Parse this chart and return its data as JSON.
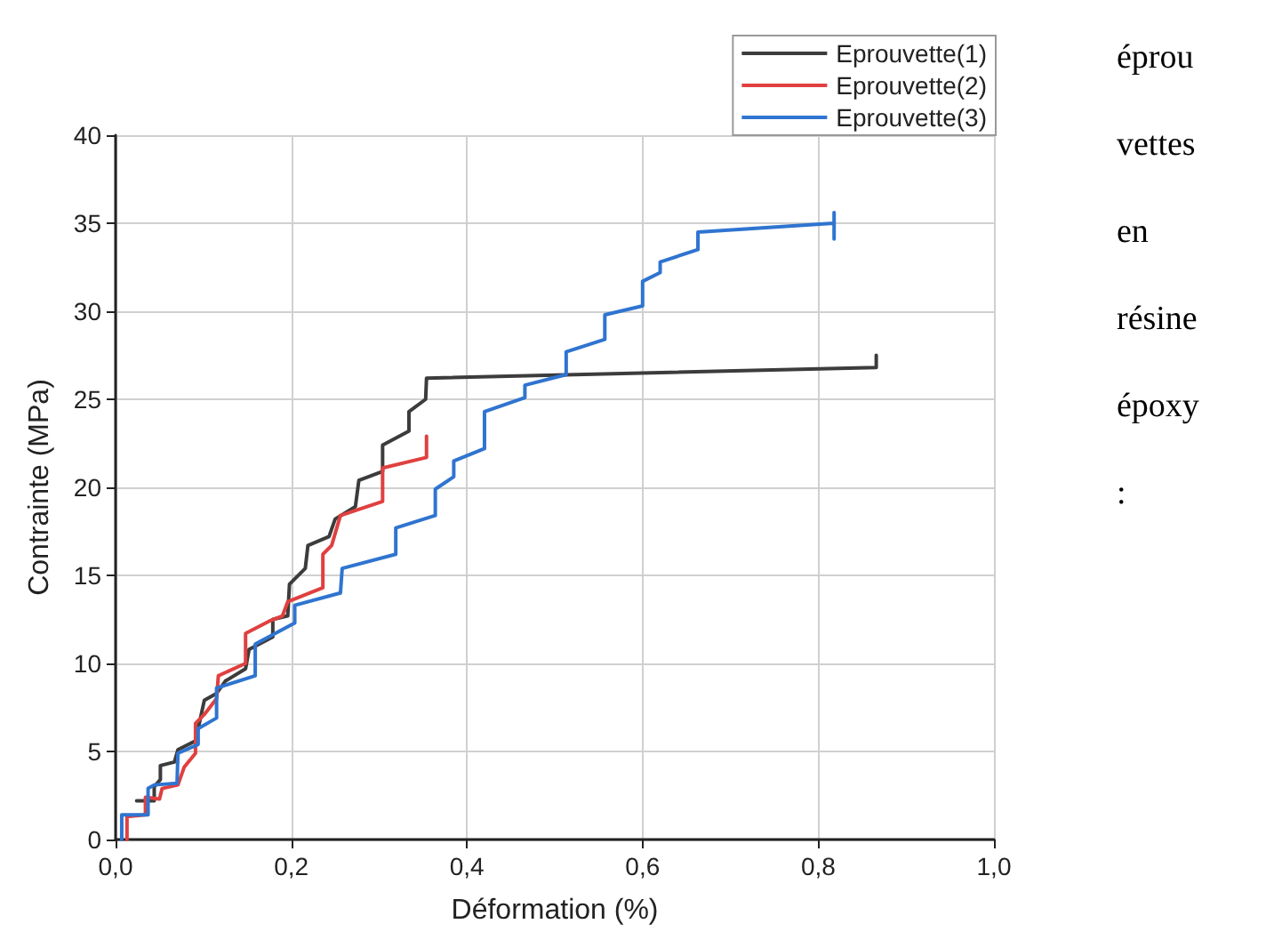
{
  "chart_data": {
    "type": "line",
    "xlabel": "Déformation (%)",
    "ylabel": "Contrainte (MPa)",
    "xlim": [
      0,
      1
    ],
    "ylim": [
      0,
      40
    ],
    "xticks": [
      {
        "value": 0,
        "label": "0,0"
      },
      {
        "value": 0.2,
        "label": "0,2"
      },
      {
        "value": 0.4,
        "label": "0,4"
      },
      {
        "value": 0.6,
        "label": "0,6"
      },
      {
        "value": 0.8,
        "label": "0,8"
      },
      {
        "value": 1,
        "label": "1,0"
      }
    ],
    "yticks": [
      0,
      5,
      10,
      15,
      20,
      25,
      30,
      35,
      40
    ],
    "grid": true,
    "legend": "top right",
    "marker": "none",
    "line_style": "solid",
    "annotations": [
      "éprou vettes en résine époxy :"
    ],
    "series": [
      {
        "name": "Eprouvette(1)",
        "color": "#3c3c3c",
        "x": [
          0.024,
          0.044,
          0.044,
          0.051,
          0.051,
          0.067,
          0.071,
          0.091,
          0.101,
          0.115,
          0.125,
          0.148,
          0.152,
          0.179,
          0.179,
          0.196,
          0.198,
          0.216,
          0.219,
          0.243,
          0.25,
          0.273,
          0.277,
          0.304,
          0.304,
          0.334,
          0.334,
          0.353,
          0.354,
          0.866,
          0.866
        ],
        "values": [
          2.2,
          2.2,
          3.0,
          3.4,
          4.2,
          4.4,
          5.1,
          5.6,
          7.9,
          8.3,
          9.0,
          9.7,
          10.8,
          11.5,
          12.5,
          12.7,
          14.5,
          15.4,
          16.7,
          17.2,
          18.2,
          18.9,
          20.4,
          20.9,
          22.4,
          23.2,
          24.3,
          25.0,
          26.2,
          26.8,
          27.5
        ]
      },
      {
        "name": "Eprouvette(2)",
        "color": "#e04040",
        "x": [
          0.013,
          0.013,
          0.034,
          0.034,
          0.05,
          0.053,
          0.071,
          0.078,
          0.091,
          0.091,
          0.101,
          0.115,
          0.117,
          0.148,
          0.148,
          0.175,
          0.19,
          0.196,
          0.236,
          0.236,
          0.246,
          0.256,
          0.304,
          0.304,
          0.354,
          0.354
        ],
        "values": [
          0,
          1.3,
          1.4,
          2.4,
          2.3,
          2.9,
          3.1,
          4.1,
          4.9,
          6.6,
          7.1,
          8.0,
          9.3,
          10.0,
          11.7,
          12.4,
          12.7,
          13.5,
          14.3,
          16.2,
          16.7,
          18.4,
          19.2,
          21.1,
          21.7,
          22.9
        ]
      },
      {
        "name": "Eprouvette(3)",
        "color": "#2f74d0",
        "x": [
          0.007,
          0.007,
          0.037,
          0.037,
          0.044,
          0.07,
          0.071,
          0.094,
          0.094,
          0.115,
          0.115,
          0.159,
          0.159,
          0.204,
          0.204,
          0.256,
          0.258,
          0.319,
          0.319,
          0.364,
          0.364,
          0.385,
          0.385,
          0.42,
          0.42,
          0.466,
          0.466,
          0.513,
          0.513,
          0.557,
          0.557,
          0.6,
          0.6,
          0.62,
          0.62,
          0.663,
          0.663,
          0.818,
          0.818,
          0.818
        ],
        "values": [
          0,
          1.4,
          1.4,
          2.9,
          3.1,
          3.2,
          4.9,
          5.4,
          6.3,
          6.9,
          8.6,
          9.3,
          11.1,
          12.3,
          13.3,
          14.0,
          15.4,
          16.2,
          17.7,
          18.4,
          19.9,
          20.6,
          21.5,
          22.2,
          24.3,
          25.1,
          25.8,
          26.4,
          27.7,
          28.4,
          29.8,
          30.3,
          31.7,
          32.2,
          32.8,
          33.5,
          34.5,
          35.0,
          35.6,
          34.1
        ]
      }
    ]
  }
}
